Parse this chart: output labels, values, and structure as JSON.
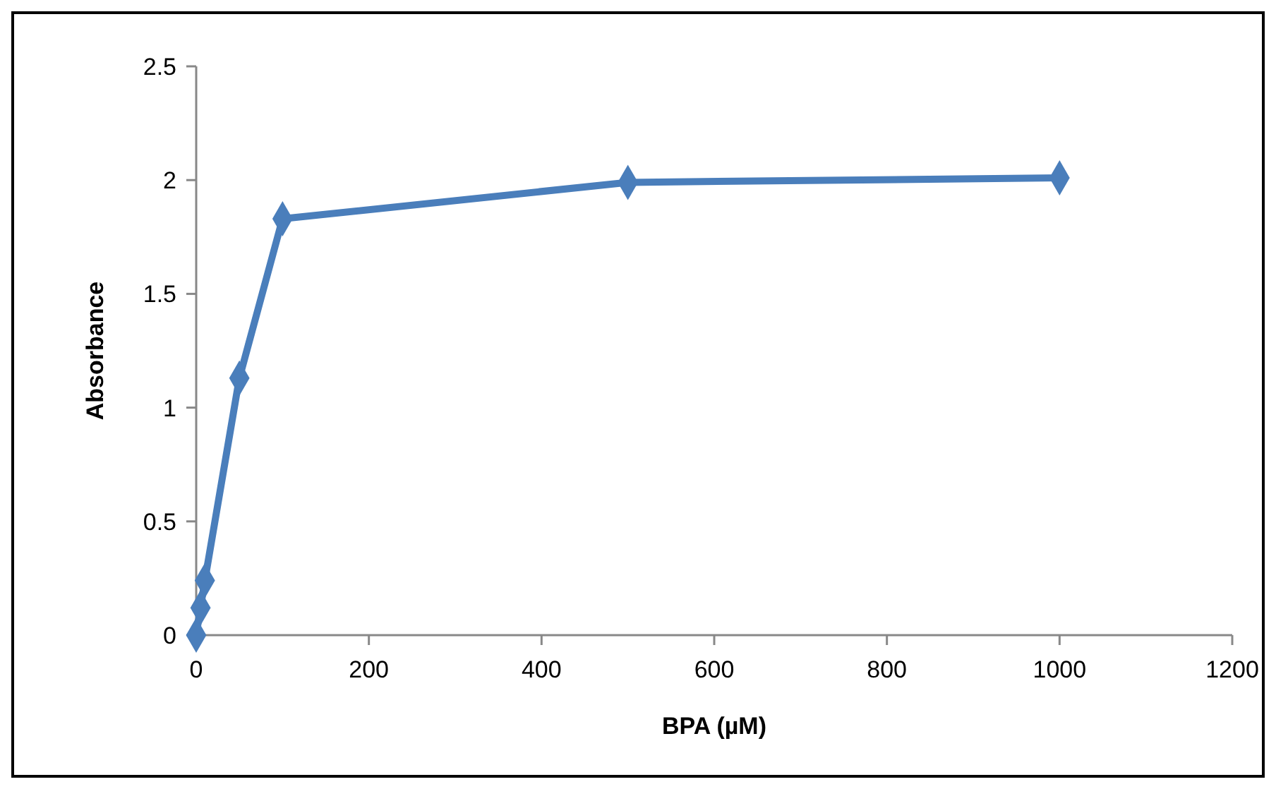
{
  "chart_data": {
    "type": "line",
    "xlabel": "BPA (µM)",
    "ylabel": "Absorbance",
    "x": [
      0,
      5,
      10,
      50,
      100,
      500,
      1000
    ],
    "series": [
      {
        "color": "#4a7ebb",
        "values": [
          0,
          0.12,
          0.24,
          1.13,
          1.83,
          1.99,
          2.01
        ]
      }
    ],
    "xlim": [
      0,
      1200
    ],
    "xticks": [
      0,
      200,
      400,
      600,
      800,
      1000,
      1200
    ],
    "ylim": [
      0,
      2.5
    ],
    "yticks": [
      0,
      0.5,
      1,
      1.5,
      2,
      2.5
    ],
    "grid": false,
    "marker": "diamond",
    "line_style": "solid"
  }
}
